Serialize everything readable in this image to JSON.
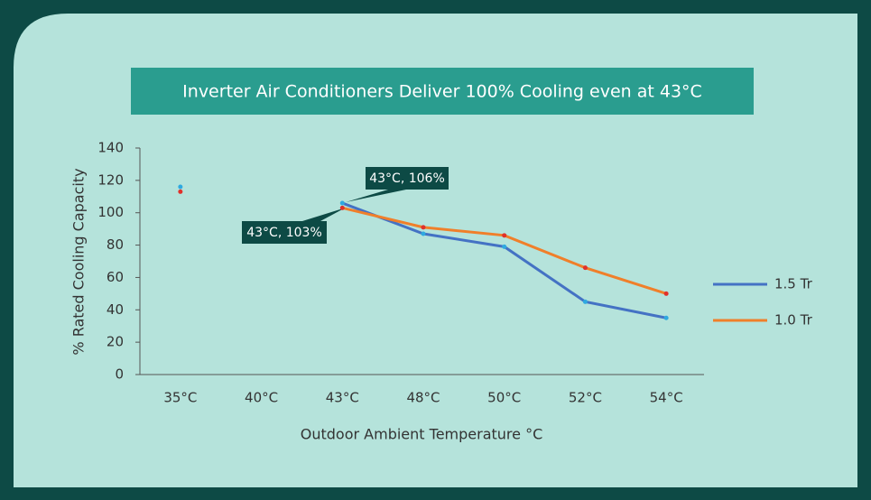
{
  "chart_data": {
    "type": "line",
    "title": "Inverter Air Conditioners Deliver 100% Cooling even at 43°C",
    "x_label": "Outdoor Ambient Temperature °C",
    "y_label": "% Rated Cooling Capacity",
    "categories": [
      "35°C",
      "40°C",
      "43°C",
      "48°C",
      "50°C",
      "52°C",
      "54°C"
    ],
    "series": [
      {
        "name": "1.5 Tr",
        "color": "#4472c4",
        "marker_color": "#2fa9e0",
        "values": [
          116,
          null,
          106,
          87,
          79,
          45,
          35
        ]
      },
      {
        "name": "1.0 Tr",
        "color": "#f07f2a",
        "marker_color": "#e0312b",
        "values": [
          113,
          null,
          103,
          91,
          86,
          66,
          50
        ]
      }
    ],
    "annotations": [
      "43°C, 106%",
      "43°C, 103%"
    ],
    "ylim": [
      0,
      140
    ],
    "yticks": [
      0,
      20,
      40,
      60,
      80,
      100,
      120,
      140
    ],
    "grid": false,
    "legend": "right"
  }
}
